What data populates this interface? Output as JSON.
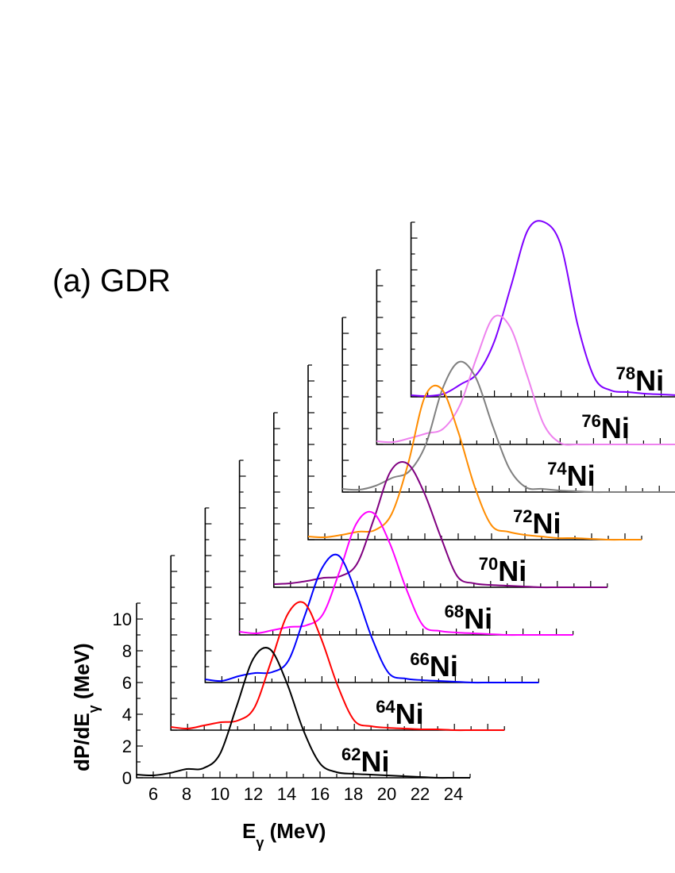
{
  "chart_data": {
    "type": "line",
    "panel_label": "(a) GDR",
    "xlabel": "E",
    "xlabel_sub": "γ",
    "xlabel_unit": " (MeV)",
    "ylabel": "dP/dE",
    "ylabel_sub": "γ",
    "ylabel_unit": " (MeV)",
    "xlim": [
      5,
      25
    ],
    "ylim": [
      0,
      11
    ],
    "x_ticks": [
      6,
      8,
      10,
      12,
      14,
      16,
      18,
      20,
      22,
      24
    ],
    "y_ticks": [
      0,
      2,
      4,
      6,
      8,
      10
    ],
    "x": [
      5,
      6,
      7,
      8,
      9,
      10,
      11,
      12,
      13,
      14,
      15,
      16,
      17,
      18,
      19,
      20,
      21,
      22,
      23,
      24,
      25
    ],
    "series": [
      {
        "name": "62Ni",
        "mass": "62",
        "symbol": "Ni",
        "color": "#000000",
        "values": [
          0.2,
          0.15,
          0.3,
          0.55,
          0.6,
          1.5,
          4.5,
          7.5,
          8.1,
          6.0,
          3.0,
          0.9,
          0.35,
          0.25,
          0.2,
          0.15,
          0.1,
          0.05,
          0.0,
          0.0,
          0.0
        ]
      },
      {
        "name": "64Ni",
        "mass": "64",
        "symbol": "Ni",
        "color": "#ff0000",
        "values": [
          0.2,
          0.1,
          0.3,
          0.5,
          0.6,
          1.4,
          4.3,
          7.3,
          8.0,
          5.8,
          2.8,
          0.6,
          0.25,
          0.15,
          0.1,
          0.05,
          0.05,
          0.0,
          0.0,
          0.0,
          0.0
        ]
      },
      {
        "name": "66Ni",
        "mass": "66",
        "symbol": "Ni",
        "color": "#0000ff",
        "values": [
          0.2,
          0.1,
          0.4,
          0.6,
          0.65,
          1.4,
          4.3,
          7.2,
          8.0,
          5.8,
          2.8,
          0.6,
          0.25,
          0.15,
          0.1,
          0.05,
          0.0,
          0.0,
          0.0,
          0.0,
          0.0
        ]
      },
      {
        "name": "68Ni",
        "mass": "68",
        "symbol": "Ni",
        "color": "#ff00ff",
        "values": [
          0.2,
          0.1,
          0.3,
          0.5,
          0.6,
          1.3,
          4.0,
          7.0,
          7.7,
          5.8,
          2.9,
          0.6,
          0.25,
          0.15,
          0.1,
          0.05,
          0.0,
          0.0,
          0.0,
          0.0,
          0.0
        ]
      },
      {
        "name": "70Ni",
        "mass": "70",
        "symbol": "Ni",
        "color": "#800080",
        "values": [
          0.2,
          0.25,
          0.4,
          0.6,
          0.7,
          1.5,
          4.3,
          7.3,
          7.8,
          6.0,
          3.2,
          0.7,
          0.25,
          0.15,
          0.1,
          0.05,
          0.0,
          0.0,
          0.0,
          0.0,
          0.0
        ]
      },
      {
        "name": "72Ni",
        "mass": "72",
        "symbol": "Ni",
        "color": "#ff8c00",
        "values": [
          0.2,
          0.15,
          0.3,
          0.5,
          0.6,
          1.6,
          4.8,
          9.0,
          9.5,
          6.8,
          3.3,
          0.9,
          0.5,
          0.3,
          0.2,
          0.1,
          0.1,
          0.05,
          0.0,
          0.0,
          0.0
        ]
      },
      {
        "name": "74Ni",
        "mass": "74",
        "symbol": "Ni",
        "color": "#808080",
        "values": [
          0.2,
          0.15,
          0.4,
          0.9,
          1.3,
          3.0,
          6.5,
          8.2,
          7.2,
          4.2,
          1.5,
          0.3,
          0.2,
          0.1,
          0.05,
          0.0,
          0.0,
          0.0,
          0.0,
          0.0,
          0.0
        ]
      },
      {
        "name": "76Ni",
        "mass": "76",
        "symbol": "Ni",
        "color": "#ee82ee",
        "values": [
          0.2,
          0.15,
          0.4,
          0.7,
          1.0,
          2.5,
          5.5,
          8.0,
          7.4,
          4.4,
          1.3,
          0.1,
          0.0,
          0.0,
          0.0,
          0.0,
          0.0,
          0.0,
          0.0,
          0.0,
          0.0
        ]
      },
      {
        "name": "78Ni",
        "mass": "78",
        "symbol": "Ni",
        "color": "#7f00ff",
        "values": [
          0.1,
          0.05,
          0.2,
          0.8,
          1.5,
          3.5,
          7.0,
          10.5,
          11.0,
          9.5,
          4.5,
          1.2,
          0.4,
          0.3,
          0.2,
          0.15,
          0.1,
          0.1,
          0.05,
          0.05,
          0.0
        ]
      }
    ]
  }
}
